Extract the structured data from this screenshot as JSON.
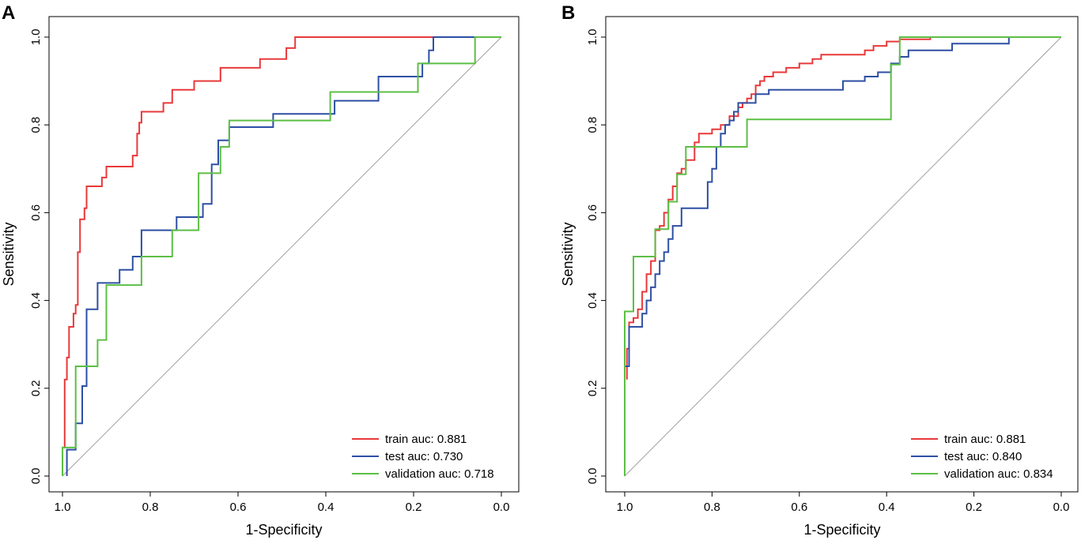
{
  "colors": {
    "train": "#e8393a",
    "test": "#2e4fa3",
    "validation": "#5cbf45",
    "diagonal": "#a0a0a0"
  },
  "chart_data": [
    {
      "panel": "A",
      "type": "line",
      "xlabel": "1-Specificity",
      "ylabel": "Sensitivity",
      "xlim": [
        1.0,
        0.0
      ],
      "ylim": [
        0.0,
        1.0
      ],
      "xticks": [
        "1.0",
        "0.8",
        "0.6",
        "0.4",
        "0.2",
        "0.0"
      ],
      "yticks": [
        "0.0",
        "0.2",
        "0.4",
        "0.6",
        "0.8",
        "1.0"
      ],
      "legend_position": "bottom-right",
      "series": [
        {
          "key": "train",
          "name": "train auc: 0.881",
          "points": [
            [
              1.0,
              0.0
            ],
            [
              1.0,
              0.065
            ],
            [
              0.995,
              0.065
            ],
            [
              0.995,
              0.22
            ],
            [
              0.99,
              0.22
            ],
            [
              0.99,
              0.27
            ],
            [
              0.985,
              0.27
            ],
            [
              0.985,
              0.34
            ],
            [
              0.975,
              0.34
            ],
            [
              0.975,
              0.37
            ],
            [
              0.97,
              0.37
            ],
            [
              0.97,
              0.39
            ],
            [
              0.965,
              0.39
            ],
            [
              0.965,
              0.51
            ],
            [
              0.96,
              0.51
            ],
            [
              0.96,
              0.585
            ],
            [
              0.95,
              0.585
            ],
            [
              0.95,
              0.61
            ],
            [
              0.945,
              0.61
            ],
            [
              0.945,
              0.66
            ],
            [
              0.91,
              0.66
            ],
            [
              0.91,
              0.68
            ],
            [
              0.9,
              0.68
            ],
            [
              0.9,
              0.705
            ],
            [
              0.84,
              0.705
            ],
            [
              0.84,
              0.73
            ],
            [
              0.83,
              0.73
            ],
            [
              0.83,
              0.78
            ],
            [
              0.825,
              0.78
            ],
            [
              0.825,
              0.805
            ],
            [
              0.82,
              0.805
            ],
            [
              0.82,
              0.83
            ],
            [
              0.77,
              0.83
            ],
            [
              0.77,
              0.85
            ],
            [
              0.75,
              0.85
            ],
            [
              0.75,
              0.88
            ],
            [
              0.7,
              0.88
            ],
            [
              0.7,
              0.9
            ],
            [
              0.64,
              0.9
            ],
            [
              0.64,
              0.93
            ],
            [
              0.55,
              0.93
            ],
            [
              0.55,
              0.95
            ],
            [
              0.49,
              0.95
            ],
            [
              0.49,
              0.975
            ],
            [
              0.47,
              0.975
            ],
            [
              0.47,
              1.0
            ],
            [
              0.0,
              1.0
            ]
          ]
        },
        {
          "key": "test",
          "name": "test auc: 0.730",
          "points": [
            [
              0.99,
              0.0
            ],
            [
              0.99,
              0.06
            ],
            [
              0.97,
              0.06
            ],
            [
              0.97,
              0.12
            ],
            [
              0.955,
              0.12
            ],
            [
              0.955,
              0.205
            ],
            [
              0.945,
              0.205
            ],
            [
              0.945,
              0.38
            ],
            [
              0.92,
              0.38
            ],
            [
              0.92,
              0.44
            ],
            [
              0.87,
              0.44
            ],
            [
              0.87,
              0.47
            ],
            [
              0.84,
              0.47
            ],
            [
              0.84,
              0.5
            ],
            [
              0.82,
              0.5
            ],
            [
              0.82,
              0.56
            ],
            [
              0.74,
              0.56
            ],
            [
              0.74,
              0.59
            ],
            [
              0.68,
              0.59
            ],
            [
              0.68,
              0.62
            ],
            [
              0.66,
              0.62
            ],
            [
              0.66,
              0.71
            ],
            [
              0.645,
              0.71
            ],
            [
              0.645,
              0.765
            ],
            [
              0.62,
              0.765
            ],
            [
              0.62,
              0.795
            ],
            [
              0.52,
              0.795
            ],
            [
              0.52,
              0.825
            ],
            [
              0.38,
              0.825
            ],
            [
              0.38,
              0.855
            ],
            [
              0.28,
              0.855
            ],
            [
              0.28,
              0.91
            ],
            [
              0.18,
              0.91
            ],
            [
              0.18,
              0.94
            ],
            [
              0.165,
              0.94
            ],
            [
              0.165,
              0.97
            ],
            [
              0.155,
              0.97
            ],
            [
              0.155,
              1.0
            ],
            [
              0.0,
              1.0
            ]
          ]
        },
        {
          "key": "validation",
          "name": "validation auc: 0.718",
          "points": [
            [
              1.0,
              0.0
            ],
            [
              1.0,
              0.065
            ],
            [
              0.97,
              0.065
            ],
            [
              0.97,
              0.25
            ],
            [
              0.92,
              0.25
            ],
            [
              0.92,
              0.31
            ],
            [
              0.9,
              0.31
            ],
            [
              0.9,
              0.435
            ],
            [
              0.82,
              0.435
            ],
            [
              0.82,
              0.5
            ],
            [
              0.75,
              0.5
            ],
            [
              0.75,
              0.56
            ],
            [
              0.69,
              0.56
            ],
            [
              0.69,
              0.69
            ],
            [
              0.64,
              0.69
            ],
            [
              0.64,
              0.75
            ],
            [
              0.62,
              0.75
            ],
            [
              0.62,
              0.81
            ],
            [
              0.39,
              0.81
            ],
            [
              0.39,
              0.875
            ],
            [
              0.19,
              0.875
            ],
            [
              0.19,
              0.94
            ],
            [
              0.06,
              0.94
            ],
            [
              0.06,
              1.0
            ],
            [
              0.0,
              1.0
            ]
          ]
        }
      ]
    },
    {
      "panel": "B",
      "type": "line",
      "xlabel": "1-Specificity",
      "ylabel": "Sensitivity",
      "xlim": [
        1.0,
        0.0
      ],
      "ylim": [
        0.0,
        1.0
      ],
      "xticks": [
        "1.0",
        "0.8",
        "0.6",
        "0.4",
        "0.2",
        "0.0"
      ],
      "yticks": [
        "0.0",
        "0.2",
        "0.4",
        "0.6",
        "0.8",
        "1.0"
      ],
      "legend_position": "bottom-right",
      "series": [
        {
          "key": "train",
          "name": "train auc: 0.881",
          "points": [
            [
              0.995,
              0.22
            ],
            [
              0.995,
              0.29
            ],
            [
              0.99,
              0.29
            ],
            [
              0.99,
              0.35
            ],
            [
              0.98,
              0.35
            ],
            [
              0.98,
              0.36
            ],
            [
              0.97,
              0.36
            ],
            [
              0.97,
              0.38
            ],
            [
              0.96,
              0.38
            ],
            [
              0.96,
              0.42
            ],
            [
              0.95,
              0.42
            ],
            [
              0.95,
              0.46
            ],
            [
              0.94,
              0.46
            ],
            [
              0.94,
              0.49
            ],
            [
              0.93,
              0.49
            ],
            [
              0.93,
              0.56
            ],
            [
              0.92,
              0.56
            ],
            [
              0.92,
              0.57
            ],
            [
              0.91,
              0.57
            ],
            [
              0.91,
              0.6
            ],
            [
              0.9,
              0.6
            ],
            [
              0.9,
              0.63
            ],
            [
              0.89,
              0.63
            ],
            [
              0.89,
              0.66
            ],
            [
              0.88,
              0.66
            ],
            [
              0.88,
              0.69
            ],
            [
              0.87,
              0.69
            ],
            [
              0.87,
              0.7
            ],
            [
              0.86,
              0.7
            ],
            [
              0.86,
              0.72
            ],
            [
              0.84,
              0.72
            ],
            [
              0.84,
              0.76
            ],
            [
              0.83,
              0.76
            ],
            [
              0.83,
              0.78
            ],
            [
              0.8,
              0.78
            ],
            [
              0.8,
              0.79
            ],
            [
              0.78,
              0.79
            ],
            [
              0.78,
              0.8
            ],
            [
              0.76,
              0.8
            ],
            [
              0.76,
              0.82
            ],
            [
              0.74,
              0.82
            ],
            [
              0.74,
              0.84
            ],
            [
              0.73,
              0.84
            ],
            [
              0.73,
              0.85
            ],
            [
              0.72,
              0.85
            ],
            [
              0.72,
              0.86
            ],
            [
              0.71,
              0.86
            ],
            [
              0.71,
              0.87
            ],
            [
              0.7,
              0.87
            ],
            [
              0.7,
              0.89
            ],
            [
              0.69,
              0.89
            ],
            [
              0.69,
              0.9
            ],
            [
              0.68,
              0.9
            ],
            [
              0.68,
              0.91
            ],
            [
              0.66,
              0.91
            ],
            [
              0.66,
              0.92
            ],
            [
              0.63,
              0.92
            ],
            [
              0.63,
              0.93
            ],
            [
              0.6,
              0.93
            ],
            [
              0.6,
              0.94
            ],
            [
              0.57,
              0.94
            ],
            [
              0.57,
              0.95
            ],
            [
              0.55,
              0.95
            ],
            [
              0.55,
              0.96
            ],
            [
              0.45,
              0.96
            ],
            [
              0.45,
              0.97
            ],
            [
              0.43,
              0.97
            ],
            [
              0.43,
              0.98
            ],
            [
              0.4,
              0.98
            ],
            [
              0.4,
              0.99
            ],
            [
              0.37,
              0.99
            ],
            [
              0.37,
              0.995
            ],
            [
              0.3,
              0.995
            ],
            [
              0.3,
              1.0
            ],
            [
              0.26,
              1.0
            ]
          ]
        },
        {
          "key": "test",
          "name": "test auc: 0.840",
          "points": [
            [
              1.0,
              0.25
            ],
            [
              0.99,
              0.25
            ],
            [
              0.99,
              0.34
            ],
            [
              0.96,
              0.34
            ],
            [
              0.96,
              0.37
            ],
            [
              0.95,
              0.37
            ],
            [
              0.95,
              0.4
            ],
            [
              0.94,
              0.4
            ],
            [
              0.94,
              0.43
            ],
            [
              0.93,
              0.43
            ],
            [
              0.93,
              0.46
            ],
            [
              0.92,
              0.46
            ],
            [
              0.92,
              0.49
            ],
            [
              0.91,
              0.49
            ],
            [
              0.91,
              0.51
            ],
            [
              0.9,
              0.51
            ],
            [
              0.9,
              0.54
            ],
            [
              0.89,
              0.54
            ],
            [
              0.89,
              0.57
            ],
            [
              0.87,
              0.57
            ],
            [
              0.87,
              0.61
            ],
            [
              0.81,
              0.61
            ],
            [
              0.81,
              0.67
            ],
            [
              0.8,
              0.67
            ],
            [
              0.8,
              0.7
            ],
            [
              0.79,
              0.7
            ],
            [
              0.79,
              0.75
            ],
            [
              0.78,
              0.75
            ],
            [
              0.78,
              0.78
            ],
            [
              0.77,
              0.78
            ],
            [
              0.77,
              0.8
            ],
            [
              0.76,
              0.8
            ],
            [
              0.76,
              0.81
            ],
            [
              0.75,
              0.81
            ],
            [
              0.75,
              0.83
            ],
            [
              0.74,
              0.83
            ],
            [
              0.74,
              0.85
            ],
            [
              0.7,
              0.85
            ],
            [
              0.7,
              0.87
            ],
            [
              0.67,
              0.87
            ],
            [
              0.67,
              0.88
            ],
            [
              0.5,
              0.88
            ],
            [
              0.5,
              0.9
            ],
            [
              0.45,
              0.9
            ],
            [
              0.45,
              0.91
            ],
            [
              0.42,
              0.91
            ],
            [
              0.42,
              0.92
            ],
            [
              0.39,
              0.92
            ],
            [
              0.39,
              0.94
            ],
            [
              0.37,
              0.94
            ],
            [
              0.37,
              0.955
            ],
            [
              0.35,
              0.955
            ],
            [
              0.35,
              0.97
            ],
            [
              0.25,
              0.97
            ],
            [
              0.25,
              0.985
            ],
            [
              0.12,
              0.985
            ],
            [
              0.12,
              1.0
            ],
            [
              0.0,
              1.0
            ]
          ]
        },
        {
          "key": "validation",
          "name": "validation auc: 0.834",
          "points": [
            [
              1.0,
              0.0
            ],
            [
              1.0,
              0.375
            ],
            [
              0.98,
              0.375
            ],
            [
              0.98,
              0.5
            ],
            [
              0.93,
              0.5
            ],
            [
              0.93,
              0.5625
            ],
            [
              0.9,
              0.5625
            ],
            [
              0.9,
              0.625
            ],
            [
              0.88,
              0.625
            ],
            [
              0.88,
              0.6875
            ],
            [
              0.86,
              0.6875
            ],
            [
              0.86,
              0.75
            ],
            [
              0.72,
              0.75
            ],
            [
              0.72,
              0.8125
            ],
            [
              0.39,
              0.8125
            ],
            [
              0.39,
              0.9375
            ],
            [
              0.37,
              0.9375
            ],
            [
              0.37,
              1.0
            ],
            [
              0.0,
              1.0
            ]
          ]
        }
      ]
    }
  ]
}
